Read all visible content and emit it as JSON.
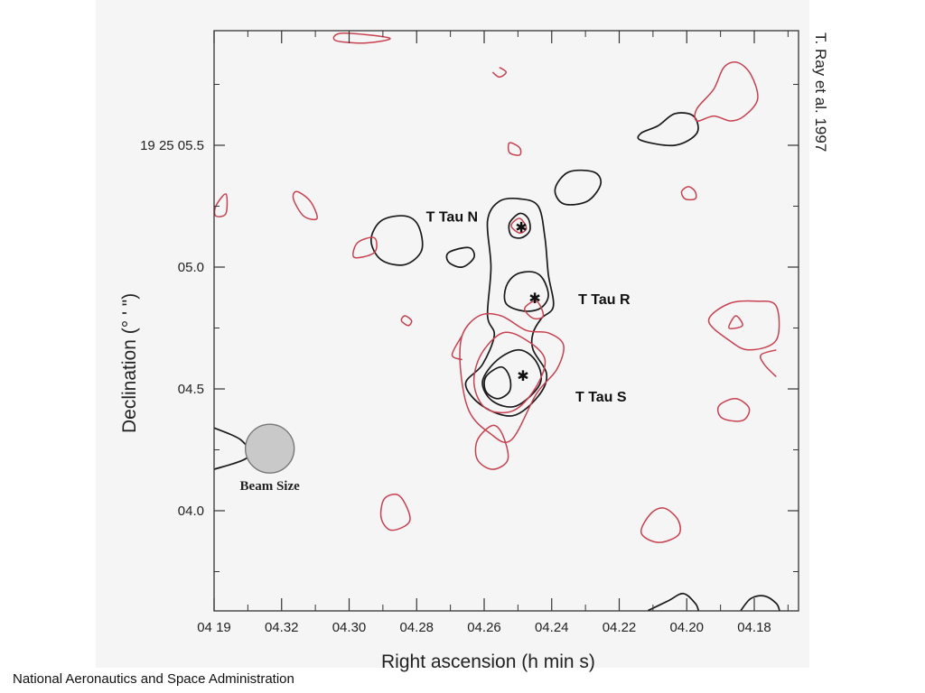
{
  "credit": "T. Ray et al. 1997",
  "footer": "National Aeronautics and Space Administration",
  "chart_data": {
    "type": "contour",
    "xlabel": "Right ascension (h min s)",
    "ylabel": "Declination (° ' \")",
    "x_ticks": [
      {
        "value": 4.34,
        "label": "04 19"
      },
      {
        "value": 4.32,
        "label": "04.32"
      },
      {
        "value": 4.3,
        "label": "04.30"
      },
      {
        "value": 4.28,
        "label": "04.28"
      },
      {
        "value": 4.26,
        "label": "04.26"
      },
      {
        "value": 4.24,
        "label": "04.24"
      },
      {
        "value": 4.22,
        "label": "04.22"
      },
      {
        "value": 4.2,
        "label": "04.20"
      },
      {
        "value": 4.18,
        "label": "04.18"
      }
    ],
    "y_ticks": [
      {
        "value": 5.5,
        "label": "19 25 05.5"
      },
      {
        "value": 5.0,
        "label": "05.0"
      },
      {
        "value": 4.5,
        "label": "04.5"
      },
      {
        "value": 4.0,
        "label": "04.0"
      }
    ],
    "xlim": [
      4.34,
      4.173
    ],
    "ylim": [
      3.6,
      6.0
    ],
    "sources": [
      {
        "name": "T Tau N",
        "ra": 4.249,
        "dec": 5.165
      },
      {
        "name": "T Tau R",
        "ra": 4.245,
        "dec": 4.875
      },
      {
        "name": "T Tau S",
        "ra": 4.2485,
        "dec": 4.555
      }
    ],
    "annotation": "Beam Size",
    "series": [
      {
        "color": "#1a1a1a",
        "contours": [
          [
            [
              4.2495,
              5.28
            ],
            [
              4.244,
              5.25
            ],
            [
              4.242,
              5.12
            ],
            [
              4.241,
              4.97
            ],
            [
              4.2395,
              4.84
            ],
            [
              4.243,
              4.79
            ],
            [
              4.2455,
              4.73
            ],
            [
              4.2455,
              4.66
            ],
            [
              4.2415,
              4.56
            ],
            [
              4.244,
              4.47
            ],
            [
              4.2515,
              4.39
            ],
            [
              4.2605,
              4.43
            ],
            [
              4.2655,
              4.52
            ],
            [
              4.2605,
              4.6
            ],
            [
              4.257,
              4.72
            ],
            [
              4.259,
              4.8
            ],
            [
              4.258,
              5.0
            ],
            [
              4.259,
              5.19
            ],
            [
              4.2555,
              5.27
            ]
          ],
          [
            [
              4.2495,
              5.22
            ],
            [
              4.247,
              5.2
            ],
            [
              4.2465,
              5.15
            ],
            [
              4.249,
              5.12
            ],
            [
              4.252,
              5.13
            ],
            [
              4.2525,
              5.18
            ]
          ],
          [
            [
              4.2455,
              4.98
            ],
            [
              4.2425,
              4.95
            ],
            [
              4.241,
              4.88
            ],
            [
              4.2435,
              4.83
            ],
            [
              4.2485,
              4.82
            ],
            [
              4.2535,
              4.85
            ],
            [
              4.2535,
              4.92
            ],
            [
              4.2505,
              4.97
            ]
          ],
          [
            [
              4.2495,
              4.66
            ],
            [
              4.2445,
              4.61
            ],
            [
              4.2435,
              4.52
            ],
            [
              4.2505,
              4.43
            ],
            [
              4.2575,
              4.45
            ],
            [
              4.2605,
              4.53
            ],
            [
              4.256,
              4.62
            ]
          ],
          [
            [
              4.255,
              4.59
            ],
            [
              4.2525,
              4.55
            ],
            [
              4.2525,
              4.49
            ],
            [
              4.256,
              4.46
            ],
            [
              4.2595,
              4.49
            ],
            [
              4.2595,
              4.55
            ]
          ],
          [
            [
              4.2835,
              5.21
            ],
            [
              4.2795,
              5.17
            ],
            [
              4.2785,
              5.07
            ],
            [
              4.2835,
              5.01
            ],
            [
              4.2905,
              5.03
            ],
            [
              4.2935,
              5.11
            ],
            [
              4.2905,
              5.19
            ]
          ],
          [
            [
              4.2645,
              5.08
            ],
            [
              4.263,
              5.04
            ],
            [
              4.2665,
              5.0
            ],
            [
              4.2705,
              5.02
            ],
            [
              4.2705,
              5.06
            ]
          ],
          [
            [
              4.2275,
              5.39
            ],
            [
              4.2255,
              5.34
            ],
            [
              4.2295,
              5.27
            ],
            [
              4.2365,
              5.26
            ],
            [
              4.239,
              5.32
            ],
            [
              4.235,
              5.39
            ]
          ],
          [
            [
              4.2135,
              5.55
            ],
            [
              4.2085,
              5.58
            ],
            [
              4.2035,
              5.63
            ],
            [
              4.198,
              5.62
            ],
            [
              4.197,
              5.55
            ],
            [
              4.2035,
              5.5
            ],
            [
              4.2135,
              5.52
            ]
          ],
          [
            [
              4.34,
              4.34
            ],
            [
              4.332,
              4.29
            ],
            [
              4.33,
              4.22
            ],
            [
              4.34,
              4.17
            ]
          ],
          [
            [
              4.2115,
              3.59
            ],
            [
              4.2055,
              3.63
            ],
            [
              4.201,
              3.66
            ],
            [
              4.1975,
              3.62
            ],
            [
              4.1965,
              3.59
            ]
          ],
          [
            [
              4.184,
              3.59
            ],
            [
              4.181,
              3.64
            ],
            [
              4.177,
              3.65
            ],
            [
              4.1735,
              3.62
            ],
            [
              4.1725,
              3.59
            ]
          ]
        ]
      },
      {
        "color": "#c94050",
        "contours": [
          [
            [
              4.255,
              4.8
            ],
            [
              4.2475,
              4.74
            ],
            [
              4.241,
              4.73
            ],
            [
              4.2365,
              4.68
            ],
            [
              4.2385,
              4.58
            ],
            [
              4.2445,
              4.48
            ],
            [
              4.252,
              4.29
            ],
            [
              4.2585,
              4.32
            ],
            [
              4.2645,
              4.41
            ],
            [
              4.267,
              4.58
            ],
            [
              4.2665,
              4.72
            ],
            [
              4.2615,
              4.8
            ]
          ],
          [
            [
              4.2545,
              4.73
            ],
            [
              4.2475,
              4.7
            ],
            [
              4.242,
              4.62
            ],
            [
              4.245,
              4.5
            ],
            [
              4.2515,
              4.41
            ],
            [
              4.2595,
              4.42
            ],
            [
              4.263,
              4.52
            ],
            [
              4.261,
              4.64
            ]
          ],
          [
            [
              4.2495,
              5.2
            ],
            [
              4.2475,
              5.16
            ],
            [
              4.2495,
              5.14
            ],
            [
              4.252,
              5.17
            ]
          ],
          [
            [
              4.2445,
              4.86
            ],
            [
              4.2425,
              4.8
            ],
            [
              4.2455,
              4.79
            ],
            [
              4.248,
              4.83
            ]
          ],
          [
            [
              4.2925,
              5.12
            ],
            [
              4.2925,
              5.06
            ],
            [
              4.2985,
              5.04
            ],
            [
              4.2975,
              5.1
            ]
          ],
          [
            [
              4.3155,
              5.31
            ],
            [
              4.3115,
              5.27
            ],
            [
              4.3095,
              5.2
            ],
            [
              4.3135,
              5.21
            ],
            [
              4.3165,
              5.28
            ]
          ],
          [
            [
              4.3365,
              5.3
            ],
            [
              4.3395,
              5.25
            ],
            [
              4.3395,
              5.21
            ],
            [
              4.3365,
              5.22
            ]
          ],
          [
            [
              4.2525,
              5.51
            ],
            [
              4.2495,
              5.49
            ],
            [
              4.2495,
              5.46
            ],
            [
              4.2525,
              5.47
            ]
          ],
          [
            [
              4.2555,
              5.82
            ],
            [
              4.2535,
              5.8
            ],
            [
              4.2555,
              5.78
            ],
            [
              4.2575,
              5.8
            ]
          ],
          [
            [
              4.302,
              5.96
            ],
            [
              4.288,
              5.94
            ],
            [
              4.295,
              5.92
            ],
            [
              4.304,
              5.93
            ]
          ],
          [
            [
              4.1995,
              5.33
            ],
            [
              4.1975,
              5.31
            ],
            [
              4.1975,
              5.28
            ],
            [
              4.2005,
              5.28
            ],
            [
              4.2015,
              5.31
            ]
          ],
          [
            [
              4.183,
              5.62
            ],
            [
              4.179,
              5.69
            ],
            [
              4.181,
              5.79
            ],
            [
              4.185,
              5.84
            ],
            [
              4.189,
              5.82
            ],
            [
              4.192,
              5.73
            ],
            [
              4.197,
              5.65
            ],
            [
              4.197,
              5.6
            ],
            [
              4.192,
              5.62
            ],
            [
              4.187,
              5.6
            ]
          ],
          [
            [
              4.2835,
              4.8
            ],
            [
              4.2815,
              4.78
            ],
            [
              4.2825,
              4.76
            ],
            [
              4.2845,
              4.78
            ]
          ],
          [
            [
              4.2575,
              4.35
            ],
            [
              4.2545,
              4.31
            ],
            [
              4.253,
              4.21
            ],
            [
              4.2575,
              4.17
            ],
            [
              4.262,
              4.21
            ],
            [
              4.262,
              4.29
            ]
          ],
          [
            [
              4.285,
              4.06
            ],
            [
              4.282,
              3.96
            ],
            [
              4.2875,
              3.92
            ],
            [
              4.2905,
              3.97
            ],
            [
              4.2895,
              4.05
            ]
          ],
          [
            [
              4.2065,
              4.01
            ],
            [
              4.2025,
              3.96
            ],
            [
              4.2025,
              3.9
            ],
            [
              4.2085,
              3.87
            ],
            [
              4.2135,
              3.91
            ],
            [
              4.2105,
              3.99
            ]
          ],
          [
            [
              4.1795,
              4.86
            ],
            [
              4.1735,
              4.84
            ],
            [
              4.1735,
              4.7
            ],
            [
              4.1815,
              4.66
            ],
            [
              4.1875,
              4.7
            ],
            [
              4.1935,
              4.78
            ],
            [
              4.1875,
              4.85
            ]
          ],
          [
            [
              4.1855,
              4.8
            ],
            [
              4.1835,
              4.76
            ],
            [
              4.1875,
              4.75
            ]
          ],
          [
            [
              4.1735,
              4.55
            ],
            [
              4.177,
              4.6
            ],
            [
              4.178,
              4.64
            ],
            [
              4.1735,
              4.66
            ]
          ],
          [
            [
              4.1855,
              4.46
            ],
            [
              4.1815,
              4.42
            ],
            [
              4.1835,
              4.37
            ],
            [
              4.1895,
              4.38
            ],
            [
              4.1905,
              4.43
            ]
          ],
          [
            [
              4.2665,
              4.72
            ],
            [
              4.2695,
              4.64
            ],
            [
              4.2665,
              4.62
            ]
          ]
        ]
      }
    ],
    "grid": false
  }
}
